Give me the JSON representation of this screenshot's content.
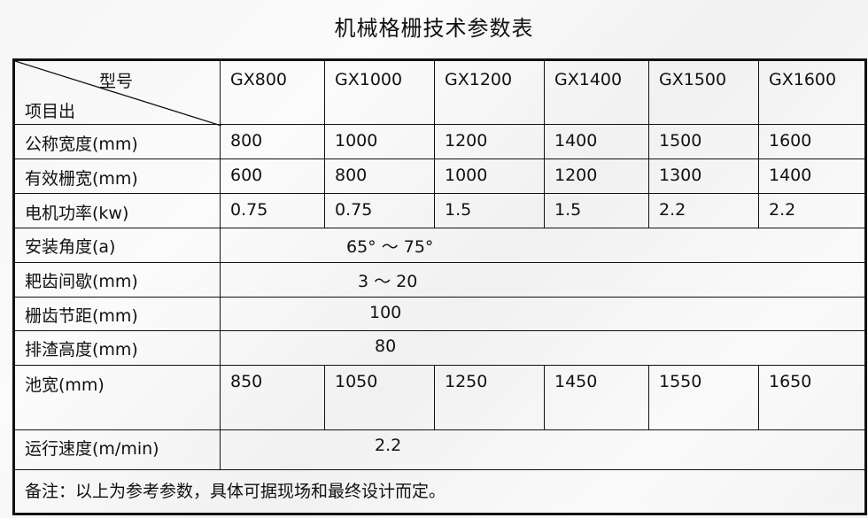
{
  "title": "机械格栅技术参数表",
  "header": {
    "diag_top": "型号",
    "diag_bottom": "项目出",
    "models": [
      "GX800",
      "GX1000",
      "GX1200",
      "GX1400",
      "GX1500",
      "GX1600"
    ]
  },
  "rows": [
    {
      "label": "公称宽度(mm)",
      "values": [
        "800",
        "1000",
        "1200",
        "1400",
        "1500",
        "1600"
      ]
    },
    {
      "label": "有效栅宽(mm)",
      "values": [
        "600",
        "800",
        "1000",
        "1200",
        "1300",
        "1400"
      ]
    },
    {
      "label": "电机功率(kw)",
      "values": [
        "0.75",
        "0.75",
        "1.5",
        "1.5",
        "2.2",
        "2.2"
      ]
    },
    {
      "label": "安装角度(a)",
      "value": "65° ～ 75°"
    },
    {
      "label": "耙齿间歇(mm)",
      "value": "3 ～ 20"
    },
    {
      "label": "栅齿节距(mm)",
      "value": "100"
    },
    {
      "label": "排渣高度(mm)",
      "value": "80"
    },
    {
      "label": "池宽(mm)",
      "values": [
        "850",
        "1050",
        "1250",
        "1450",
        "1550",
        "1650"
      ]
    },
    {
      "label": "运行速度(m/min)",
      "value": "2.2"
    }
  ],
  "note": "备注：以上为参考参数，具体可据现场和最终设计而定。"
}
